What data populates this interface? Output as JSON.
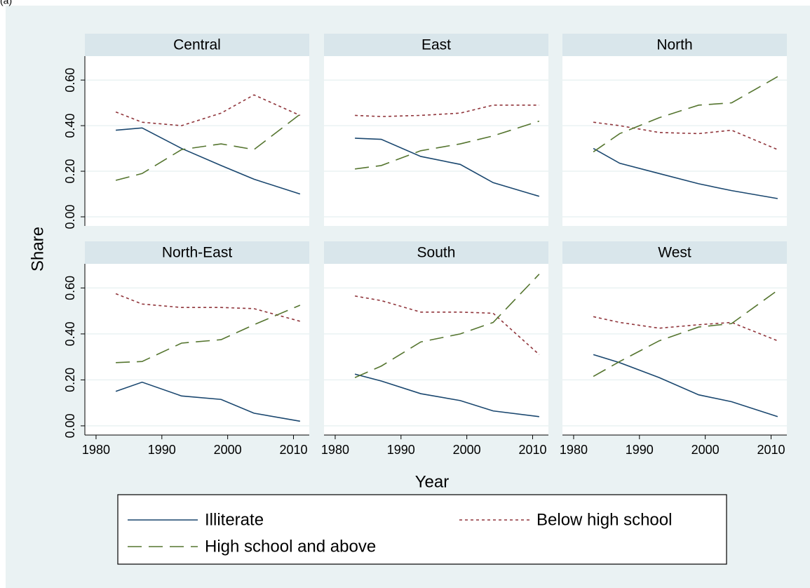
{
  "label": "(a)",
  "chart_data": {
    "type": "line",
    "x_label": "Year",
    "y_label": "Share",
    "x": [
      1983,
      1987,
      1993,
      1999,
      2004,
      2011
    ],
    "xlim": [
      1978.3,
      2012.4
    ],
    "xticks": [
      1980,
      1990,
      2000,
      2010
    ],
    "ylim": [
      -0.04,
      0.705
    ],
    "yticks": [
      {
        "value": 0,
        "label": "0.00"
      },
      {
        "value": 0.2,
        "label": "0.20"
      },
      {
        "value": 0.4,
        "label": "0.40"
      },
      {
        "value": 0.6,
        "label": "0.60"
      }
    ],
    "grid": true,
    "series": [
      {
        "name": "Illiterate",
        "color": "#1a476f",
        "dash": "none"
      },
      {
        "name": "Below high school",
        "color": "#90353b",
        "dash": "4 4"
      },
      {
        "name": "High school and above",
        "color": "#55752f",
        "dash": "20 10"
      }
    ],
    "panels": [
      {
        "title": "Central",
        "values": [
          [
            0.38,
            0.39,
            0.3,
            0.225,
            0.165,
            0.1
          ],
          [
            0.46,
            0.415,
            0.4,
            0.455,
            0.535,
            0.445
          ],
          [
            0.16,
            0.19,
            0.295,
            0.32,
            0.295,
            0.45
          ]
        ]
      },
      {
        "title": "East",
        "values": [
          [
            0.345,
            0.34,
            0.265,
            0.23,
            0.15,
            0.09
          ],
          [
            0.445,
            0.44,
            0.445,
            0.455,
            0.49,
            0.49
          ],
          [
            0.21,
            0.225,
            0.29,
            0.32,
            0.355,
            0.42
          ]
        ]
      },
      {
        "title": "North",
        "values": [
          [
            0.3,
            0.235,
            0.19,
            0.145,
            0.115,
            0.08
          ],
          [
            0.415,
            0.4,
            0.37,
            0.365,
            0.38,
            0.295
          ],
          [
            0.285,
            0.365,
            0.435,
            0.49,
            0.5,
            0.615
          ]
        ]
      },
      {
        "title": "North-East",
        "values": [
          [
            0.15,
            0.19,
            0.13,
            0.115,
            0.055,
            0.02
          ],
          [
            0.575,
            0.53,
            0.515,
            0.515,
            0.51,
            0.455
          ],
          [
            0.275,
            0.28,
            0.36,
            0.375,
            0.44,
            0.525
          ]
        ]
      },
      {
        "title": "South",
        "values": [
          [
            0.225,
            0.195,
            0.14,
            0.11,
            0.065,
            0.04
          ],
          [
            0.565,
            0.545,
            0.495,
            0.495,
            0.49,
            0.31
          ],
          [
            0.21,
            0.26,
            0.365,
            0.4,
            0.45,
            0.66
          ]
        ]
      },
      {
        "title": "West",
        "values": [
          [
            0.31,
            0.275,
            0.21,
            0.135,
            0.105,
            0.04
          ],
          [
            0.475,
            0.45,
            0.425,
            0.44,
            0.45,
            0.37
          ],
          [
            0.215,
            0.28,
            0.37,
            0.43,
            0.445,
            0.59
          ]
        ]
      }
    ]
  }
}
